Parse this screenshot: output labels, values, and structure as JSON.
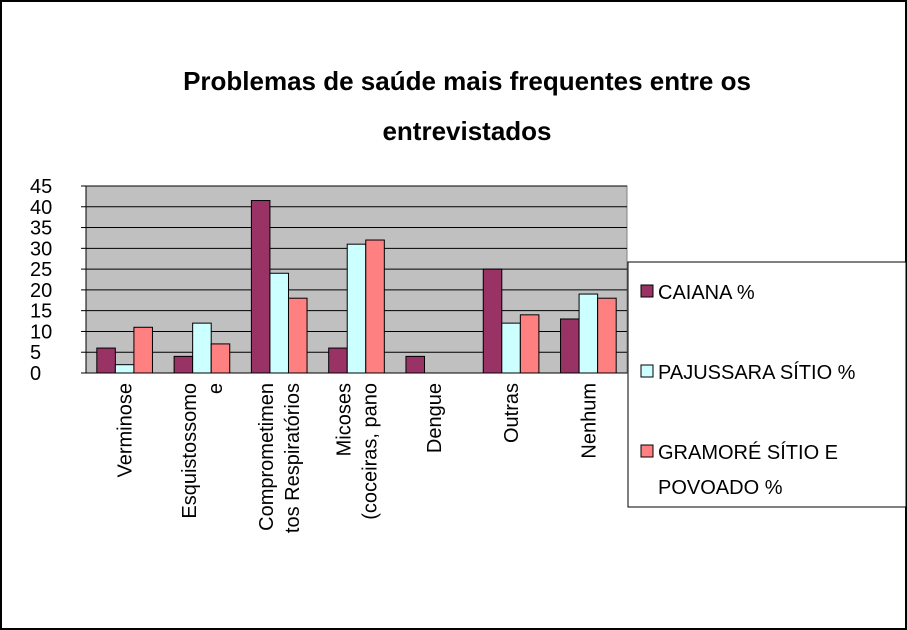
{
  "chart_data": {
    "type": "bar",
    "title": "Problemas de saúde mais frequentes entre os entrevistados",
    "categories": [
      "Verminose",
      "Esquistossomo\ne",
      "Comprometimen\ntos Respiratórios",
      "Micoses\n(coceiras, pano",
      "Dengue",
      "Outras",
      "Nenhum"
    ],
    "series": [
      {
        "name": "CAIANA %",
        "color": "#993366",
        "values": [
          6,
          4,
          41.5,
          6,
          4,
          25,
          13
        ]
      },
      {
        "name": "PAJUSSARA SÍTIO %",
        "color": "#ccffff",
        "values": [
          2,
          12,
          24,
          31,
          0,
          12,
          19
        ]
      },
      {
        "name": "GRAMORÉ SÍTIO E POVOADO %",
        "color": "#ff8080",
        "values": [
          11,
          7,
          18,
          32,
          0,
          14,
          18
        ]
      }
    ],
    "ylim": [
      0,
      45
    ],
    "yticks": [
      0,
      5,
      10,
      15,
      20,
      25,
      30,
      35,
      40,
      45
    ],
    "grid": true,
    "legend": "right"
  }
}
